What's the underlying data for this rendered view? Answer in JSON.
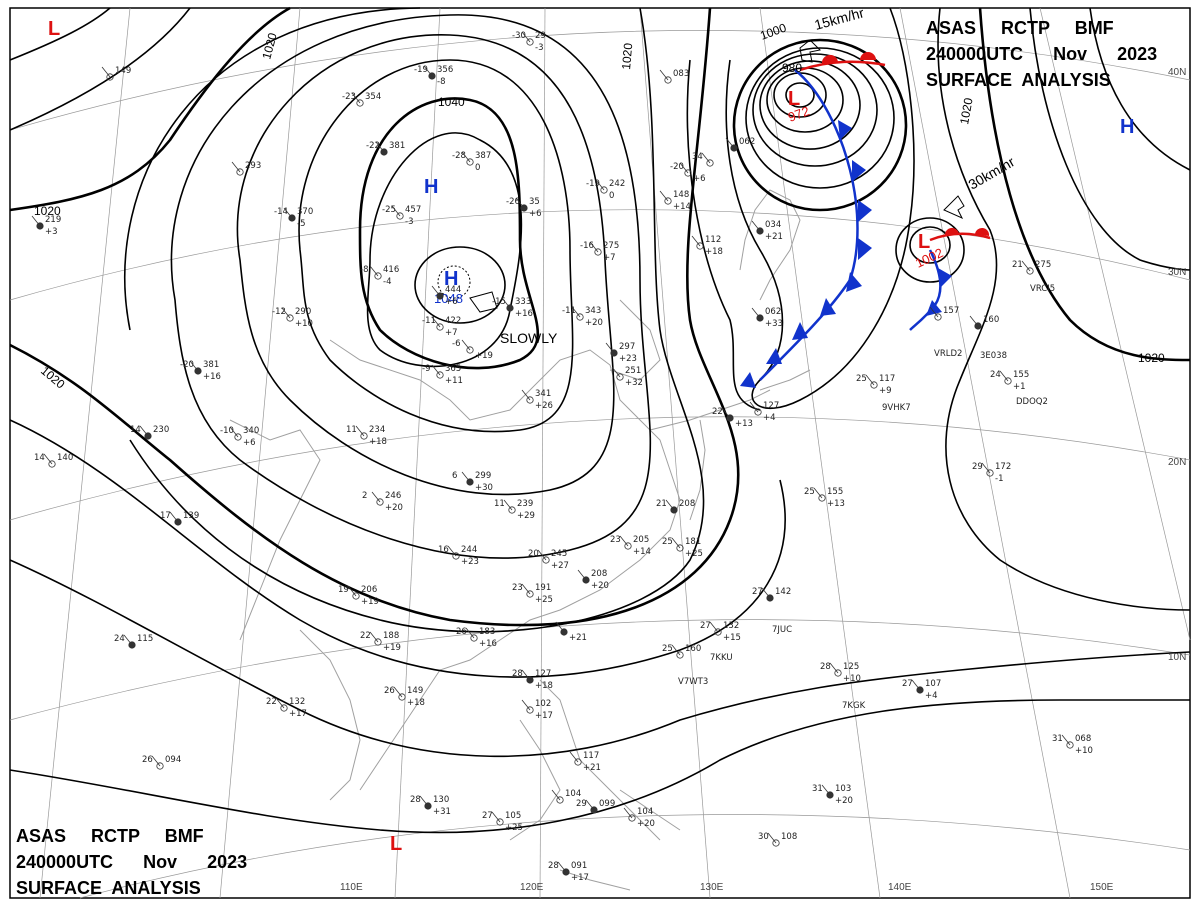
{
  "header_top": {
    "line1": "ASAS     RCTP     BMF",
    "line2": "240000UTC      Nov      2023",
    "line3": "SURFACE  ANALYSIS"
  },
  "header_bottom": {
    "line1": "ASAS     RCTP     BMF",
    "line2": "240000UTC      Nov      2023",
    "line3": "SURFACE  ANALYSIS"
  },
  "longitude_labels": [
    "110E",
    "120E",
    "130E",
    "140E",
    "150E"
  ],
  "latitude_labels": [
    "40N",
    "30N",
    "20N",
    "10N"
  ],
  "isobar_labels": [
    "1020",
    "1040",
    "1020",
    "1020",
    "1000",
    "980",
    "1020",
    "1020",
    "1020"
  ],
  "pressure_systems": [
    {
      "type": "H",
      "value": "1048",
      "note": "SLOWLY"
    },
    {
      "type": "H",
      "value": ""
    },
    {
      "type": "H",
      "value": ""
    },
    {
      "type": "L",
      "value": "972",
      "speed": "15km/hr"
    },
    {
      "type": "L",
      "value": "1002",
      "speed": "30km/hr"
    },
    {
      "type": "L",
      "value": ""
    },
    {
      "type": "L",
      "value": ""
    }
  ],
  "stations": [
    {
      "t": "-19",
      "p": "356",
      "d": "-8"
    },
    {
      "t": "-23",
      "p": "354",
      "d": ""
    },
    {
      "t": "-30",
      "p": "29",
      "d": "-3"
    },
    {
      "t": "-22",
      "p": "381",
      "d": ""
    },
    {
      "t": "-28",
      "p": "387",
      "d": "0"
    },
    {
      "t": "-25",
      "p": "457",
      "d": "-3"
    },
    {
      "t": "-14",
      "p": "370",
      "d": "-5"
    },
    {
      "t": "",
      "p": "293",
      "d": ""
    },
    {
      "t": "-8",
      "p": "416",
      "d": "-4"
    },
    {
      "t": "",
      "p": "444",
      "d": "+6"
    },
    {
      "t": "-11",
      "p": "422",
      "d": "+7"
    },
    {
      "t": "-12",
      "p": "290",
      "d": "+10"
    },
    {
      "t": "-26",
      "p": "35",
      "d": "+6"
    },
    {
      "t": "-19",
      "p": "242",
      "d": "0"
    },
    {
      "t": "-16",
      "p": "275",
      "d": "+7"
    },
    {
      "t": "-15",
      "p": "333",
      "d": "+16"
    },
    {
      "t": "-11",
      "p": "343",
      "d": "+20"
    },
    {
      "t": "-6",
      "p": "",
      "d": "+19"
    },
    {
      "t": "-20",
      "p": "381",
      "d": "+16"
    },
    {
      "t": "-9",
      "p": "365",
      "d": "+11"
    },
    {
      "t": "",
      "p": "341",
      "d": "+26"
    },
    {
      "t": "",
      "p": "297",
      "d": "+23"
    },
    {
      "t": "",
      "p": "251",
      "d": "+32"
    },
    {
      "t": "-10",
      "p": "340",
      "d": "+6"
    },
    {
      "t": "14",
      "p": "230",
      "d": ""
    },
    {
      "t": "14",
      "p": "140",
      "d": ""
    },
    {
      "t": "11",
      "p": "234",
      "d": "+18"
    },
    {
      "t": "6",
      "p": "299",
      "d": "+30"
    },
    {
      "t": "2",
      "p": "246",
      "d": "+20"
    },
    {
      "t": "11",
      "p": "239",
      "d": "+29"
    },
    {
      "t": "17",
      "p": "139",
      "d": ""
    },
    {
      "t": "16",
      "p": "244",
      "d": "+23"
    },
    {
      "t": "20",
      "p": "245",
      "d": "+27"
    },
    {
      "t": "",
      "p": "208",
      "d": "+20"
    },
    {
      "t": "23",
      "p": "205",
      "d": "+14"
    },
    {
      "t": "25",
      "p": "181",
      "d": "+25"
    },
    {
      "t": "21",
      "p": "208",
      "d": ""
    },
    {
      "t": "19",
      "p": "206",
      "d": "+19"
    },
    {
      "t": "23",
      "p": "191",
      "d": "+25"
    },
    {
      "t": "",
      "p": "",
      "d": "+21"
    },
    {
      "t": "22",
      "p": "188",
      "d": "+19"
    },
    {
      "t": "26",
      "p": "183",
      "d": "+16"
    },
    {
      "t": "24",
      "p": "115",
      "d": ""
    },
    {
      "t": "22",
      "p": "132",
      "d": "+17"
    },
    {
      "t": "26",
      "p": "149",
      "d": "+18"
    },
    {
      "t": "28",
      "p": "127",
      "d": "+18"
    },
    {
      "t": "",
      "p": "102",
      "d": "+17"
    },
    {
      "t": "26",
      "p": "094",
      "d": ""
    },
    {
      "t": "28",
      "p": "130",
      "d": "+31"
    },
    {
      "t": "27",
      "p": "105",
      "d": "+25"
    },
    {
      "t": "",
      "p": "104",
      "d": ""
    },
    {
      "t": "29",
      "p": "099",
      "d": ""
    },
    {
      "t": "",
      "p": "104",
      "d": "+20"
    },
    {
      "t": "",
      "p": "117",
      "d": "+21"
    },
    {
      "t": "28",
      "p": "091",
      "d": "+17"
    },
    {
      "t": "27",
      "p": "132",
      "d": "+15"
    },
    {
      "t": "25",
      "p": "160",
      "d": ""
    },
    {
      "t": "27",
      "p": "142",
      "d": ""
    },
    {
      "t": "25",
      "p": "155",
      "d": "+13"
    },
    {
      "t": "28",
      "p": "125",
      "d": "+10"
    },
    {
      "t": "27",
      "p": "107",
      "d": "+4"
    },
    {
      "t": "29",
      "p": "172",
      "d": "-1"
    },
    {
      "t": "31",
      "p": "068",
      "d": "+10"
    },
    {
      "t": "31",
      "p": "103",
      "d": "+20"
    },
    {
      "t": "30",
      "p": "108",
      "d": ""
    },
    {
      "t": "",
      "p": "127",
      "d": "+4"
    },
    {
      "t": "22",
      "p": "",
      "d": "+13"
    },
    {
      "t": "25",
      "p": "117",
      "d": "+9"
    },
    {
      "t": "24",
      "p": "155",
      "d": "+1"
    },
    {
      "t": "",
      "p": "160",
      "d": ""
    },
    {
      "t": "",
      "p": "157",
      "d": ""
    },
    {
      "t": "21",
      "p": "275",
      "d": ""
    },
    {
      "t": "",
      "p": "062",
      "d": "+33"
    },
    {
      "t": "",
      "p": "112",
      "d": "+18"
    },
    {
      "t": "",
      "p": "148",
      "d": "+14"
    },
    {
      "t": "",
      "p": "034",
      "d": "+21"
    },
    {
      "t": "-20",
      "p": "",
      "d": "+6"
    },
    {
      "t": "",
      "p": "149",
      "d": ""
    },
    {
      "t": "",
      "p": "219",
      "d": "+3"
    },
    {
      "t": "",
      "p": "083",
      "d": ""
    },
    {
      "t": "34",
      "p": "",
      "d": ""
    },
    {
      "t": "",
      "p": "062",
      "d": ""
    }
  ],
  "ship_ids": [
    "7JUC",
    "7KKU",
    "V7WT3",
    "7KGK",
    "9VHK7",
    "DDOQ2",
    "VRCI5",
    "VRLD2",
    "3E038"
  ],
  "colors": {
    "high": "#1133cc",
    "low": "#dd1111",
    "isobar": "#000000",
    "grid": "#888888",
    "coast": "#9a9a9a"
  }
}
